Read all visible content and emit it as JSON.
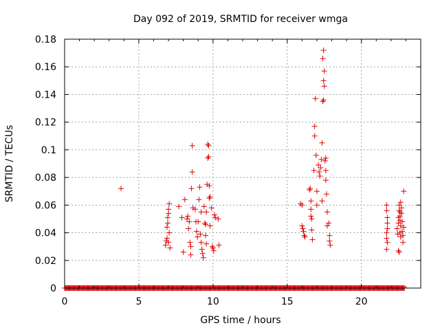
{
  "chart_data": {
    "type": "scatter",
    "title": "Day 092 of 2019, SRMTID for receiver wmga",
    "xlabel": "GPS time / hours",
    "ylabel": "SRMTID / TECUs",
    "xlim": [
      0,
      24
    ],
    "ylim": [
      0,
      0.18
    ],
    "xticks": [
      0,
      5,
      10,
      15,
      20
    ],
    "xtick_labels": [
      "0",
      "5",
      "10",
      "15",
      "20"
    ],
    "yticks": [
      0,
      0.02,
      0.04,
      0.06,
      0.08,
      0.1,
      0.12,
      0.14,
      0.16,
      0.18
    ],
    "ytick_labels": [
      "0",
      "0.02",
      "0.04",
      "0.06",
      "0.08",
      "0.1",
      "0.12",
      "0.14",
      "0.16",
      "0.18"
    ],
    "grid": true,
    "marker": "+",
    "color": "#dd0000",
    "baseline": {
      "y": 0,
      "x_start": 0,
      "x_end": 22.9,
      "step": 0.05
    },
    "series": [
      {
        "name": "SRMTID",
        "points": [
          [
            3.8,
            0.072
          ],
          [
            6.8,
            0.031
          ],
          [
            6.85,
            0.034
          ],
          [
            6.9,
            0.036
          ],
          [
            6.9,
            0.044
          ],
          [
            6.95,
            0.047
          ],
          [
            6.95,
            0.051
          ],
          [
            7.0,
            0.054
          ],
          [
            7.0,
            0.057
          ],
          [
            7.05,
            0.061
          ],
          [
            7.05,
            0.04
          ],
          [
            7.0,
            0.033
          ],
          [
            7.1,
            0.029
          ],
          [
            7.7,
            0.059
          ],
          [
            7.9,
            0.051
          ],
          [
            8.0,
            0.026
          ],
          [
            8.1,
            0.064
          ],
          [
            8.25,
            0.05
          ],
          [
            8.3,
            0.052
          ],
          [
            8.35,
            0.043
          ],
          [
            8.4,
            0.048
          ],
          [
            8.45,
            0.033
          ],
          [
            8.5,
            0.024
          ],
          [
            8.5,
            0.03
          ],
          [
            8.55,
            0.072
          ],
          [
            8.6,
            0.084
          ],
          [
            8.6,
            0.103
          ],
          [
            8.65,
            0.058
          ],
          [
            8.8,
            0.057
          ],
          [
            8.85,
            0.048
          ],
          [
            8.9,
            0.041
          ],
          [
            8.95,
            0.037
          ],
          [
            9.0,
            0.048
          ],
          [
            9.05,
            0.064
          ],
          [
            9.1,
            0.073
          ],
          [
            9.15,
            0.039
          ],
          [
            9.2,
            0.055
          ],
          [
            9.2,
            0.033
          ],
          [
            9.25,
            0.028
          ],
          [
            9.3,
            0.025
          ],
          [
            9.35,
            0.022
          ],
          [
            9.4,
            0.059
          ],
          [
            9.45,
            0.047
          ],
          [
            9.5,
            0.046
          ],
          [
            9.5,
            0.038
          ],
          [
            9.55,
            0.032
          ],
          [
            9.55,
            0.055
          ],
          [
            9.6,
            0.075
          ],
          [
            9.65,
            0.094
          ],
          [
            9.65,
            0.104
          ],
          [
            9.7,
            0.103
          ],
          [
            9.7,
            0.095
          ],
          [
            9.75,
            0.074
          ],
          [
            9.75,
            0.065
          ],
          [
            9.8,
            0.066
          ],
          [
            9.8,
            0.045
          ],
          [
            9.9,
            0.058
          ],
          [
            9.95,
            0.03
          ],
          [
            10.0,
            0.029
          ],
          [
            10.05,
            0.027
          ],
          [
            10.1,
            0.053
          ],
          [
            10.15,
            0.051
          ],
          [
            10.35,
            0.05
          ],
          [
            10.4,
            0.031
          ],
          [
            15.9,
            0.061
          ],
          [
            16.0,
            0.06
          ],
          [
            16.0,
            0.045
          ],
          [
            16.05,
            0.043
          ],
          [
            16.1,
            0.041
          ],
          [
            16.15,
            0.038
          ],
          [
            16.2,
            0.037
          ],
          [
            16.5,
            0.071
          ],
          [
            16.55,
            0.072
          ],
          [
            16.6,
            0.063
          ],
          [
            16.6,
            0.057
          ],
          [
            16.6,
            0.052
          ],
          [
            16.65,
            0.05
          ],
          [
            16.65,
            0.042
          ],
          [
            16.7,
            0.035
          ],
          [
            16.8,
            0.085
          ],
          [
            16.85,
            0.117
          ],
          [
            16.85,
            0.11
          ],
          [
            16.9,
            0.137
          ],
          [
            16.95,
            0.096
          ],
          [
            17.0,
            0.07
          ],
          [
            17.0,
            0.06
          ],
          [
            17.1,
            0.089
          ],
          [
            17.15,
            0.084
          ],
          [
            17.2,
            0.081
          ],
          [
            17.25,
            0.087
          ],
          [
            17.3,
            0.093
          ],
          [
            17.35,
            0.105
          ],
          [
            17.35,
            0.063
          ],
          [
            17.4,
            0.135
          ],
          [
            17.45,
            0.136
          ],
          [
            17.45,
            0.15
          ],
          [
            17.5,
            0.146
          ],
          [
            17.4,
            0.166
          ],
          [
            17.45,
            0.172
          ],
          [
            17.5,
            0.157
          ],
          [
            17.55,
            0.092
          ],
          [
            17.6,
            0.094
          ],
          [
            17.6,
            0.085
          ],
          [
            17.6,
            0.078
          ],
          [
            17.65,
            0.068
          ],
          [
            17.7,
            0.055
          ],
          [
            17.7,
            0.045
          ],
          [
            17.8,
            0.047
          ],
          [
            17.85,
            0.038
          ],
          [
            17.85,
            0.034
          ],
          [
            17.9,
            0.031
          ],
          [
            21.7,
            0.06
          ],
          [
            21.7,
            0.056
          ],
          [
            21.75,
            0.051
          ],
          [
            21.75,
            0.047
          ],
          [
            21.75,
            0.043
          ],
          [
            21.7,
            0.04
          ],
          [
            21.7,
            0.036
          ],
          [
            21.75,
            0.033
          ],
          [
            21.7,
            0.028
          ],
          [
            22.4,
            0.043
          ],
          [
            22.45,
            0.039
          ],
          [
            22.5,
            0.047
          ],
          [
            22.5,
            0.051
          ],
          [
            22.55,
            0.056
          ],
          [
            22.55,
            0.06
          ],
          [
            22.6,
            0.055
          ],
          [
            22.6,
            0.052
          ],
          [
            22.6,
            0.049
          ],
          [
            22.65,
            0.045
          ],
          [
            22.65,
            0.062
          ],
          [
            22.7,
            0.058
          ],
          [
            22.7,
            0.054
          ],
          [
            22.75,
            0.048
          ],
          [
            22.75,
            0.041
          ],
          [
            22.8,
            0.038
          ],
          [
            22.8,
            0.033
          ],
          [
            22.85,
            0.07
          ],
          [
            22.85,
            0.044
          ],
          [
            22.5,
            0.027
          ],
          [
            22.55,
            0.026
          ],
          [
            22.6,
            0.04
          ],
          [
            22.65,
            0.037
          ]
        ]
      }
    ]
  }
}
